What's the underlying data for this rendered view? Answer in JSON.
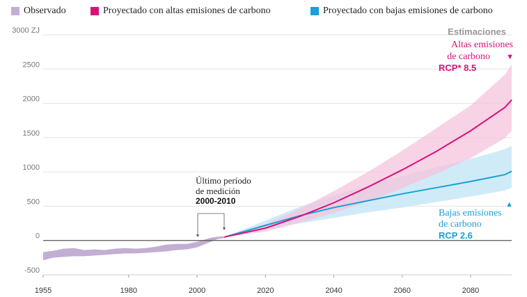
{
  "legend": {
    "observed": "Observado",
    "high": "Proyectado con altas emisiones de carbono",
    "low": "Proyectado con bajas emisiones de carbono"
  },
  "annotations": {
    "measurement_line1": "Último período",
    "measurement_line2": "de medición",
    "measurement_period": "2000-2010",
    "estimates_header": "Estimaciones",
    "high_line1": "Altas emisiones",
    "high_line2": "de carbono",
    "high_label": "RCP* 8.5",
    "low_line1": "Bajas emisiones",
    "low_line2": "de carbono",
    "low_label": "RCP 2.6",
    "down_marker": "▼",
    "up_marker": "▲"
  },
  "colors": {
    "observed": "#c3aed3",
    "high": "#d6127a",
    "high_band": "#f6c4de",
    "low": "#1a9fd6",
    "low_band": "#c8e8f7",
    "zero_line": "#555555",
    "grid": "#e3e3e3"
  },
  "chart_data": {
    "type": "area",
    "title": "",
    "xlabel": "",
    "ylabel": "",
    "y_unit": "ZJ",
    "xlim": [
      1955,
      2092
    ],
    "ylim": [
      -500,
      3000
    ],
    "x_ticks": [
      1955,
      1980,
      2000,
      2020,
      2040,
      2060,
      2080
    ],
    "y_ticks": [
      {
        "value": 3000,
        "label": "3000 ZJ"
      },
      {
        "value": 2500,
        "label": "2500"
      },
      {
        "value": 2000,
        "label": "2000"
      },
      {
        "value": 1500,
        "label": "1500"
      },
      {
        "value": 1000,
        "label": "1000"
      },
      {
        "value": 500,
        "label": "500"
      },
      {
        "value": 0,
        "label": "0"
      },
      {
        "value": -500,
        "label": "-500"
      }
    ],
    "grid": true,
    "legend_position": "top",
    "series": [
      {
        "name": "Observado",
        "type": "band",
        "x": [
          1955,
          1958,
          1961,
          1964,
          1967,
          1970,
          1973,
          1976,
          1979,
          1982,
          1985,
          1988,
          1991,
          1994,
          1997,
          2000,
          2002,
          2004,
          2006,
          2008
        ],
        "lower": [
          -290,
          -250,
          -240,
          -230,
          -230,
          -220,
          -210,
          -200,
          -190,
          -190,
          -180,
          -170,
          -160,
          -140,
          -130,
          -100,
          -60,
          -20,
          20,
          35
        ],
        "upper": [
          -170,
          -150,
          -120,
          -110,
          -140,
          -130,
          -140,
          -120,
          -110,
          -120,
          -110,
          -90,
          -60,
          -50,
          -50,
          -20,
          10,
          40,
          55,
          60
        ]
      },
      {
        "name": "Proyectado con altas emisiones de carbono",
        "x": [
          2008,
          2020,
          2030,
          2040,
          2050,
          2060,
          2070,
          2080,
          2090,
          2092
        ],
        "y": [
          50,
          180,
          350,
          550,
          780,
          1030,
          1300,
          1600,
          1940,
          2050
        ],
        "lower": [
          50,
          130,
          260,
          400,
          570,
          760,
          970,
          1200,
          1490,
          1600
        ],
        "upper": [
          50,
          240,
          460,
          720,
          1000,
          1310,
          1640,
          1970,
          2420,
          2570
        ]
      },
      {
        "name": "Proyectado con bajas emisiones de carbono",
        "x": [
          2008,
          2020,
          2030,
          2040,
          2050,
          2060,
          2070,
          2080,
          2090,
          2092
        ],
        "y": [
          50,
          220,
          360,
          480,
          580,
          680,
          770,
          860,
          960,
          1010
        ],
        "lower": [
          50,
          160,
          250,
          330,
          410,
          480,
          560,
          640,
          730,
          770
        ],
        "upper": [
          50,
          290,
          490,
          660,
          800,
          940,
          1070,
          1190,
          1330,
          1380
        ]
      }
    ]
  }
}
